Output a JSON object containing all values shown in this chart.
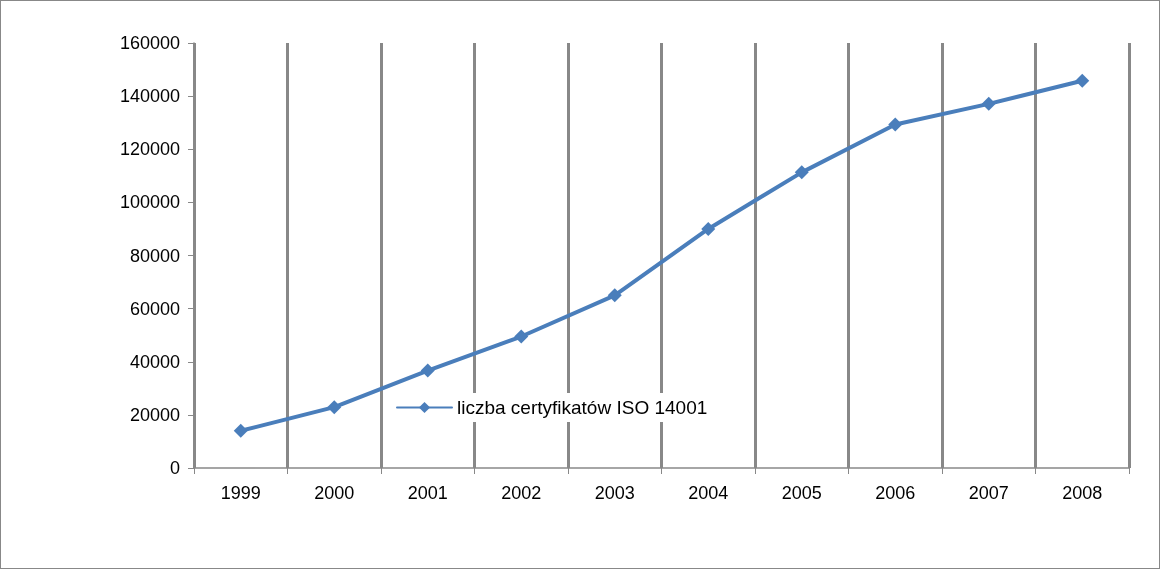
{
  "chart_data": {
    "type": "line",
    "categories": [
      "1999",
      "2000",
      "2001",
      "2002",
      "2003",
      "2004",
      "2005",
      "2006",
      "2007",
      "2008"
    ],
    "series": [
      {
        "name": "liczba certyfikatów ISO 14001",
        "color": "#4a7ebb",
        "values": [
          14000,
          22900,
          36700,
          49500,
          65000,
          90000,
          111300,
          129300,
          137100,
          145800
        ]
      }
    ],
    "ylim": [
      0,
      160000
    ],
    "yticks": [
      0,
      20000,
      40000,
      60000,
      80000,
      100000,
      120000,
      140000,
      160000
    ],
    "grid": "x",
    "legend": "bottom",
    "marker": "diamond",
    "line_style": "solid"
  }
}
